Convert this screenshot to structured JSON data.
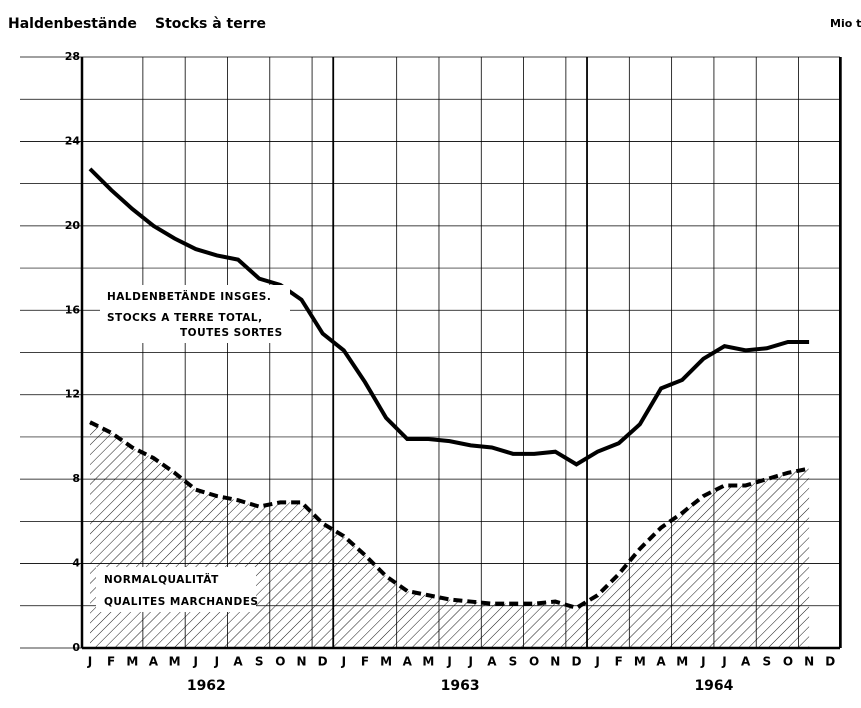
{
  "chart_data": {
    "type": "line",
    "title": "Haldenbestände",
    "subtitle": "Stocks à terre",
    "unit": "Mio t",
    "categories": [
      "J",
      "F",
      "M",
      "A",
      "M",
      "J",
      "J",
      "A",
      "S",
      "O",
      "N",
      "D",
      "J",
      "F",
      "M",
      "A",
      "M",
      "J",
      "J",
      "A",
      "S",
      "O",
      "N",
      "D",
      "J",
      "F",
      "M",
      "A",
      "M",
      "J",
      "J",
      "A",
      "S",
      "O",
      "N",
      "D"
    ],
    "years": [
      "1962",
      "1963",
      "1964"
    ],
    "series": [
      {
        "color": "#000000",
        "dashed": false,
        "hatched": false,
        "values": [
          22.7,
          21.7,
          20.8,
          20.0,
          19.4,
          18.9,
          18.6,
          18.4,
          17.5,
          17.2,
          16.5,
          14.9,
          14.1,
          12.6,
          10.9,
          9.9,
          9.9,
          9.8,
          9.6,
          9.5,
          9.2,
          9.2,
          9.3,
          8.7,
          9.3,
          9.7,
          10.6,
          12.3,
          12.7,
          13.7,
          14.3,
          14.1,
          14.2,
          14.5,
          14.5,
          null
        ]
      },
      {
        "color": "#000000",
        "dashed": true,
        "hatched": true,
        "values": [
          10.7,
          10.2,
          9.5,
          9.0,
          8.3,
          7.5,
          7.2,
          7.0,
          6.7,
          6.9,
          6.9,
          5.9,
          5.3,
          4.4,
          3.4,
          2.7,
          2.5,
          2.3,
          2.2,
          2.1,
          2.1,
          2.1,
          2.2,
          1.9,
          2.5,
          3.5,
          4.7,
          5.7,
          6.4,
          7.2,
          7.7,
          7.7,
          8.0,
          8.3,
          8.5,
          null
        ]
      }
    ],
    "annotations": [
      {
        "lines": [
          "HALDENBETÄNDE INSGES.",
          "STOCKS A TERRE TOTAL,",
          "TOUTES SORTES"
        ]
      },
      {
        "lines": [
          "NORMALQUALITÄT",
          "QUALITES MARCHANDES"
        ]
      }
    ],
    "ylim": [
      0,
      28
    ],
    "yticks": [
      0,
      4,
      8,
      12,
      16,
      20,
      24,
      28
    ],
    "grid": true
  }
}
